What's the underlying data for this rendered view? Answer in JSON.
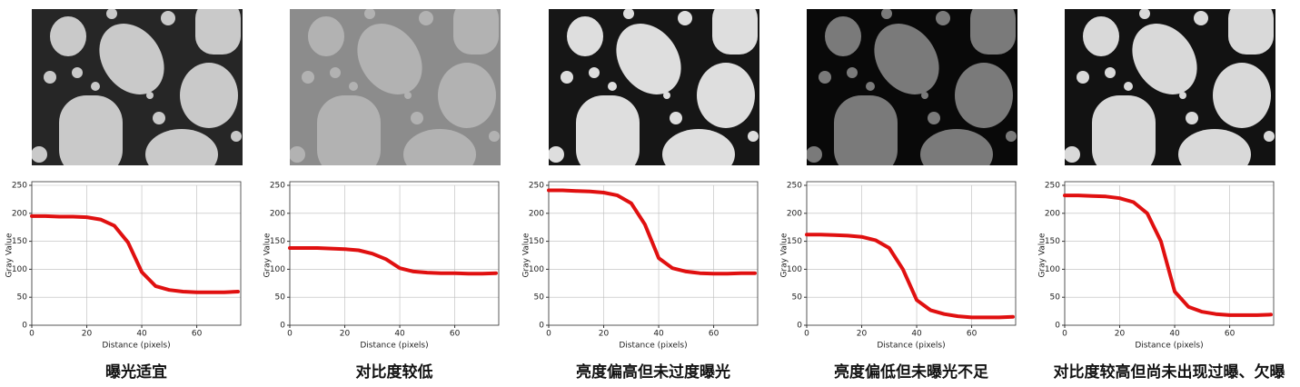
{
  "chart_data": [
    {
      "type": "line",
      "title": "曝光适宜",
      "xlabel": "Distance (pixels)",
      "ylabel": "Gray Value",
      "x": [
        0,
        5,
        10,
        15,
        20,
        25,
        30,
        35,
        40,
        45,
        50,
        55,
        60,
        65,
        70,
        75
      ],
      "series": [
        {
          "color": "#e01010",
          "values": [
            195,
            195,
            194,
            194,
            193,
            189,
            178,
            148,
            95,
            70,
            63,
            60,
            59,
            59,
            59,
            60
          ]
        }
      ],
      "xlim": [
        0,
        76
      ],
      "ylim": [
        0,
        250
      ],
      "xticks": [
        0,
        20,
        40,
        60
      ],
      "yticks": [
        0,
        50,
        100,
        150,
        200,
        250
      ],
      "grid": true
    },
    {
      "type": "line",
      "title": "对比度较低",
      "xlabel": "Distance (pixels)",
      "ylabel": "Gray Value",
      "x": [
        0,
        5,
        10,
        15,
        20,
        25,
        30,
        35,
        40,
        45,
        50,
        55,
        60,
        65,
        70,
        75
      ],
      "series": [
        {
          "color": "#e01010",
          "values": [
            138,
            138,
            138,
            137,
            136,
            134,
            128,
            118,
            102,
            96,
            94,
            93,
            93,
            92,
            92,
            93
          ]
        }
      ],
      "xlim": [
        0,
        76
      ],
      "ylim": [
        0,
        250
      ],
      "xticks": [
        0,
        20,
        40,
        60
      ],
      "yticks": [
        0,
        50,
        100,
        150,
        200,
        250
      ],
      "grid": true
    },
    {
      "type": "line",
      "title": "亮度偏高但未过度曝光",
      "xlabel": "Distance (pixels)",
      "ylabel": "Gray Value",
      "x": [
        0,
        5,
        10,
        15,
        20,
        25,
        30,
        35,
        40,
        45,
        50,
        55,
        60,
        65,
        70,
        75
      ],
      "series": [
        {
          "color": "#e01010",
          "values": [
            241,
            241,
            240,
            239,
            237,
            232,
            218,
            180,
            120,
            102,
            96,
            93,
            92,
            92,
            93,
            93
          ]
        }
      ],
      "xlim": [
        0,
        76
      ],
      "ylim": [
        0,
        250
      ],
      "xticks": [
        0,
        20,
        40,
        60
      ],
      "yticks": [
        0,
        50,
        100,
        150,
        200,
        250
      ],
      "grid": true
    },
    {
      "type": "line",
      "title": "亮度偏低但未曝光不足",
      "xlabel": "Distance (pixels)",
      "ylabel": "Gray Value",
      "x": [
        0,
        5,
        10,
        15,
        20,
        25,
        30,
        35,
        40,
        45,
        50,
        55,
        60,
        65,
        70,
        75
      ],
      "series": [
        {
          "color": "#e01010",
          "values": [
            162,
            162,
            161,
            160,
            158,
            152,
            138,
            100,
            45,
            27,
            20,
            16,
            14,
            14,
            14,
            15
          ]
        }
      ],
      "xlim": [
        0,
        76
      ],
      "ylim": [
        0,
        250
      ],
      "xticks": [
        0,
        20,
        40,
        60
      ],
      "yticks": [
        0,
        50,
        100,
        150,
        200,
        250
      ],
      "grid": true
    },
    {
      "type": "line",
      "title": "对比度较高但尚未出现过曝、欠曝",
      "xlabel": "Distance (pixels)",
      "ylabel": "Gray Value",
      "x": [
        0,
        5,
        10,
        15,
        20,
        25,
        30,
        35,
        40,
        45,
        50,
        55,
        60,
        65,
        70,
        75
      ],
      "series": [
        {
          "color": "#e01010",
          "values": [
            232,
            232,
            231,
            230,
            227,
            220,
            200,
            150,
            60,
            33,
            24,
            20,
            18,
            18,
            18,
            19
          ]
        }
      ],
      "xlim": [
        0,
        76
      ],
      "ylim": [
        0,
        250
      ],
      "xticks": [
        0,
        20,
        40,
        60
      ],
      "yticks": [
        0,
        50,
        100,
        150,
        200,
        250
      ],
      "grid": true
    }
  ]
}
